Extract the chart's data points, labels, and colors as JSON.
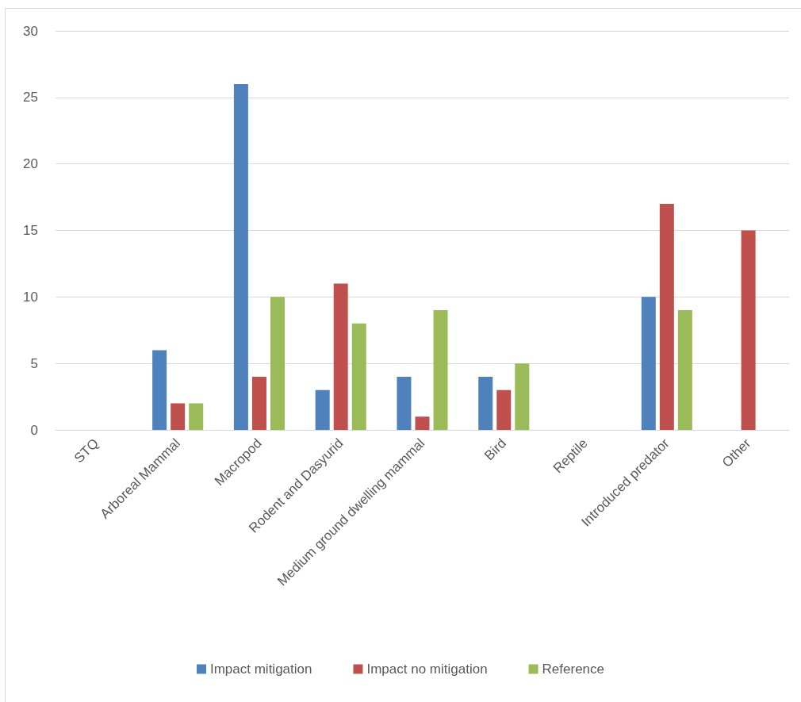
{
  "chart_data": {
    "type": "bar",
    "categories": [
      "STQ",
      "Arboreal Mammal",
      "Macropod",
      "Rodent and Dasyurid",
      "Medium ground dwelling mammal",
      "Bird",
      "Reptile",
      "Introduced predator",
      "Other"
    ],
    "series": [
      {
        "name": "Impact mitigation",
        "color": "#4f81bd",
        "values": [
          null,
          6,
          26,
          3,
          4,
          4,
          null,
          10,
          null
        ]
      },
      {
        "name": "Impact no mitigation",
        "color": "#c0504d",
        "values": [
          null,
          2,
          4,
          11,
          1,
          3,
          null,
          17,
          15
        ]
      },
      {
        "name": "Reference",
        "color": "#9bbb59",
        "values": [
          null,
          2,
          10,
          8,
          9,
          5,
          null,
          9,
          null
        ]
      }
    ],
    "ylim": [
      0,
      30
    ],
    "yticks": [
      0,
      5,
      10,
      15,
      20,
      25,
      30
    ],
    "grid": "y",
    "legend": "bottom"
  }
}
